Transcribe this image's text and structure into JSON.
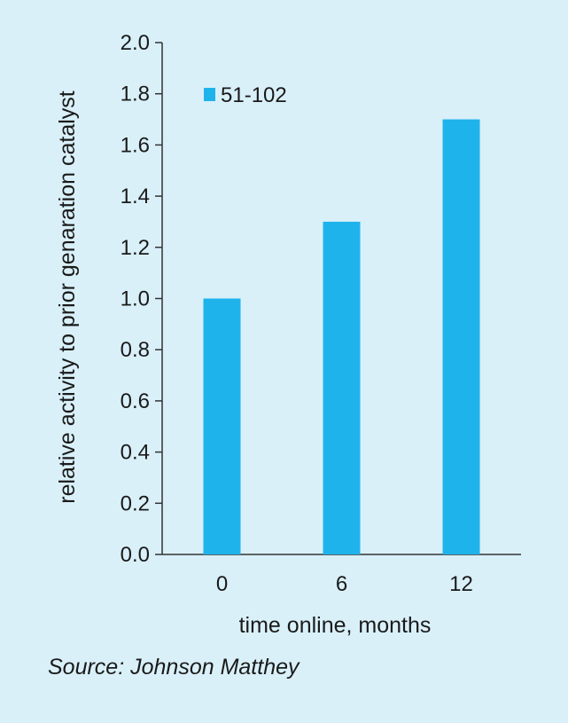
{
  "chart_data": {
    "type": "bar",
    "categories": [
      "0",
      "6",
      "12"
    ],
    "series": [
      {
        "name": "51-102",
        "values": [
          1.0,
          1.3,
          1.7
        ]
      }
    ],
    "title": "",
    "xlabel": "time online, months",
    "ylabel": "relative activity to prior genaration catalyst",
    "ylim": [
      0,
      2.0
    ],
    "yticks": [
      0.0,
      0.2,
      0.4,
      0.6,
      0.8,
      1.0,
      1.2,
      1.4,
      1.6,
      1.8,
      2.0
    ],
    "ytick_labels": [
      "0.0",
      "0.2",
      "0.4",
      "0.6",
      "0.8",
      "1.0",
      "1.2",
      "1.4",
      "1.6",
      "1.8",
      "2.0"
    ],
    "grid": false,
    "legend_position": "top-left",
    "colors": {
      "bar": "#1fb3ec",
      "axis": "#333333",
      "background": "#d9f0f9"
    }
  },
  "source": "Source: Johnson Matthey"
}
